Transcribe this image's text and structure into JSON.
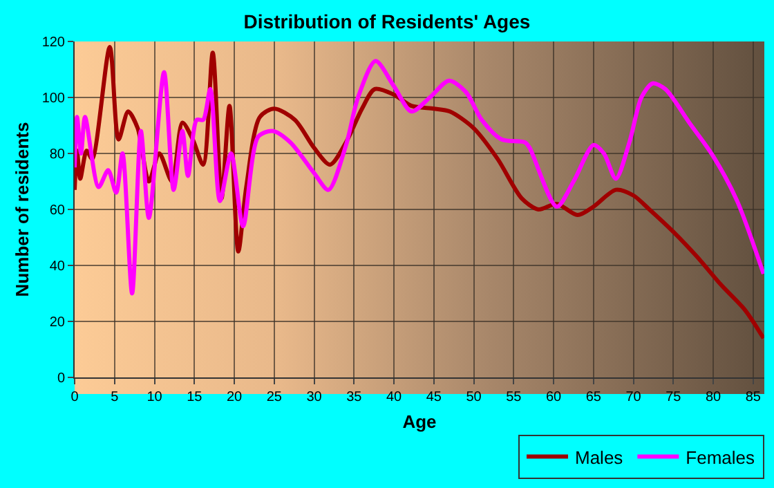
{
  "chart_data": {
    "type": "line",
    "title": "Distribution of Residents' Ages",
    "xlabel": "Age",
    "ylabel": "Number of residents",
    "xlim": [
      0,
      86.4
    ],
    "xticks": [
      0,
      5,
      10,
      15,
      20,
      25,
      30,
      35,
      40,
      45,
      50,
      55,
      60,
      65,
      70,
      75,
      80,
      85
    ],
    "ylim": [
      0,
      120
    ],
    "yticks": [
      0,
      20,
      40,
      60,
      80,
      100,
      120
    ],
    "grid": true,
    "legend": "bottom right",
    "marker": "none",
    "line_style": "solid",
    "series": [
      {
        "name": "Males",
        "color": "#a00000",
        "x": [
          0,
          0.3,
          0.7,
          1.5,
          2.2,
          4.4,
          5.5,
          6.7,
          7.9,
          9.3,
          10.6,
          12.2,
          13.5,
          14.8,
          16.1,
          17.3,
          18.4,
          19.4,
          20.5,
          21.5,
          23.2,
          25,
          27.6,
          30,
          32,
          34,
          36,
          37.6,
          40,
          42.2,
          45,
          47,
          50,
          53,
          56,
          58.1,
          60.4,
          63,
          65,
          67.8,
          70,
          72,
          75,
          78,
          81,
          84,
          86.3
        ],
        "values": [
          67,
          81,
          71,
          81,
          78,
          118,
          85,
          95,
          89,
          70,
          80,
          70,
          91,
          85,
          76,
          116,
          64,
          97,
          45,
          68,
          93,
          96,
          92,
          82,
          76,
          84,
          96,
          103,
          101,
          97,
          96,
          95,
          89,
          78,
          64,
          60,
          62,
          58,
          61,
          67,
          65,
          60,
          52,
          43,
          33,
          24,
          14
        ]
      },
      {
        "name": "Females",
        "color": "#ff00ff",
        "x": [
          0,
          0.3,
          0.8,
          1.3,
          3,
          4.2,
          5.2,
          6,
          7.2,
          8.3,
          9.3,
          11.2,
          12.4,
          13.5,
          14.2,
          15.3,
          16.1,
          17,
          18.2,
          19.6,
          21.1,
          23,
          24.8,
          27,
          30,
          31.8,
          34,
          35.5,
          37.7,
          40,
          42.2,
          44.5,
          46.9,
          49,
          51,
          53.5,
          56.4,
          57,
          60.4,
          62.5,
          65,
          66.3,
          67.8,
          69.5,
          71,
          72.4,
          74,
          77,
          80,
          83,
          86.3
        ],
        "values": [
          75,
          93,
          80,
          93,
          68,
          74,
          66,
          80,
          30,
          88,
          57,
          109,
          67,
          88,
          72,
          92,
          92,
          103,
          63,
          80,
          54,
          86,
          88,
          84,
          73,
          67,
          83,
          100,
          113,
          104,
          95,
          100,
          106,
          102,
          92,
          85,
          84,
          82,
          61,
          70,
          83,
          80,
          71,
          84,
          100,
          105,
          103,
          91,
          79,
          63,
          37
        ]
      }
    ]
  }
}
